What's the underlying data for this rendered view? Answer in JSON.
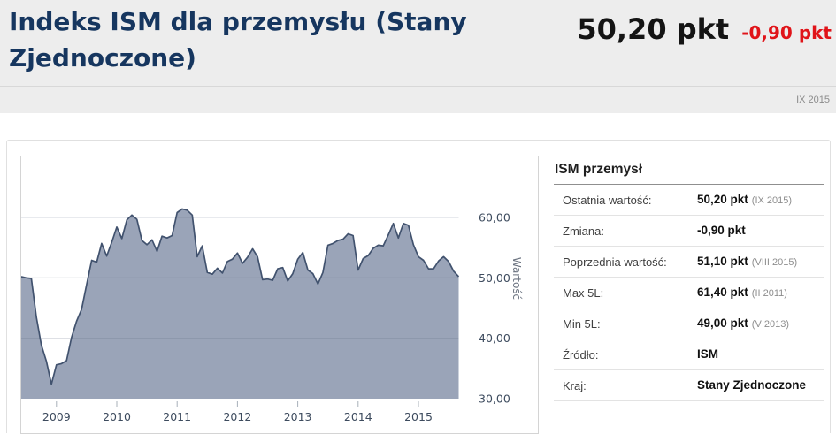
{
  "header": {
    "title": "Indeks ISM dla przemysłu (Stany Zjednoczone)",
    "current_value": "50,20 pkt",
    "change": "-0,90 pkt",
    "period": "IX 2015"
  },
  "panel": {
    "heading": "ISM przemysł",
    "rows": [
      {
        "label": "Ostatnia wartość:",
        "value": "50,20 pkt",
        "note": "(IX 2015)"
      },
      {
        "label": "Zmiana:",
        "value": "-0,90 pkt",
        "note": ""
      },
      {
        "label": "Poprzednia wartość:",
        "value": "51,10 pkt",
        "note": "(VIII 2015)"
      },
      {
        "label": "Max 5L:",
        "value": "61,40 pkt",
        "note": "(II 2011)"
      },
      {
        "label": "Min 5L:",
        "value": "49,00 pkt",
        "note": "(V 2013)"
      },
      {
        "label": "Źródło:",
        "value": "ISM",
        "note": ""
      },
      {
        "label": "Kraj:",
        "value": "Stany Zjednoczone",
        "note": ""
      }
    ]
  },
  "colors": {
    "title_navy": "#16365f",
    "change_red": "#e01419",
    "header_band": "#ededed"
  },
  "chart_data": {
    "type": "area",
    "title": "",
    "xlabel": "",
    "ylabel": "Wartość",
    "start": "2008-06",
    "end": "2015-09",
    "x_tick_labels": [
      "2009",
      "2010",
      "2011",
      "2012",
      "2013",
      "2014",
      "2015"
    ],
    "y_tick_values": [
      60,
      50,
      40,
      30
    ],
    "y_tick_labels": [
      "60,00",
      "50,00",
      "40,00",
      "30,00"
    ],
    "ylim": [
      30,
      66
    ],
    "grid": true,
    "legend": false,
    "fill_color": "#9aa4b8",
    "line_color": "#41526e",
    "axis_text_color": "#3d4b5e",
    "series": [
      {
        "name": "ISM przemysł",
        "values": [
          50.2,
          50.0,
          49.9,
          43.5,
          38.9,
          36.2,
          32.4,
          35.6,
          35.8,
          36.3,
          40.1,
          42.8,
          44.8,
          48.9,
          52.9,
          52.6,
          55.7,
          53.6,
          55.9,
          58.4,
          56.5,
          59.6,
          60.4,
          59.7,
          56.2,
          55.5,
          56.3,
          54.4,
          56.9,
          56.6,
          57.0,
          60.8,
          61.4,
          61.2,
          60.4,
          53.5,
          55.3,
          50.9,
          50.6,
          51.6,
          50.8,
          52.7,
          53.1,
          54.1,
          52.4,
          53.4,
          54.8,
          53.5,
          49.7,
          49.8,
          49.6,
          51.5,
          51.7,
          49.5,
          50.7,
          53.1,
          54.2,
          51.3,
          50.7,
          49.0,
          50.9,
          55.4,
          55.7,
          56.2,
          56.4,
          57.3,
          57.0,
          51.3,
          53.2,
          53.7,
          54.9,
          55.4,
          55.3,
          57.1,
          59.0,
          56.6,
          59.0,
          58.7,
          55.5,
          53.5,
          52.9,
          51.5,
          51.5,
          52.8,
          53.5,
          52.7,
          51.1,
          50.2
        ]
      }
    ]
  }
}
